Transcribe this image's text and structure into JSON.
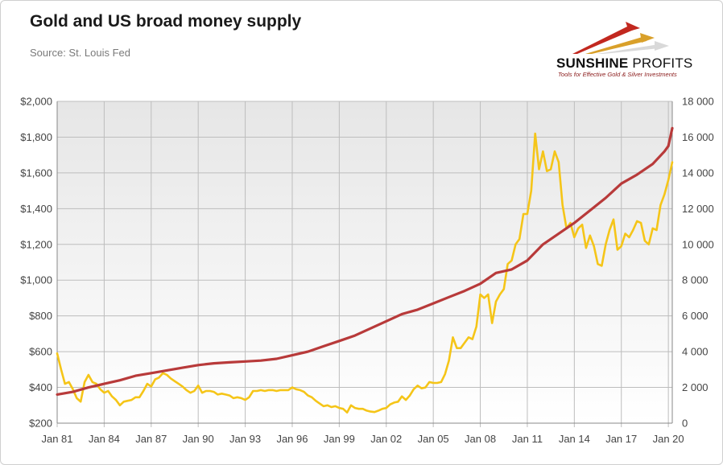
{
  "header": {
    "title": "Gold and US broad money supply",
    "subtitle": "Source: St. Louis Fed"
  },
  "logo": {
    "name_bold": "SUNSHINE",
    "name_light": " PROFITS",
    "tagline": "Tools for Effective Gold & Silver Investments"
  },
  "colors": {
    "gold": "#f5c518",
    "money": "#b83a3a",
    "grid": "#bdbdbd",
    "plot_bg_top": "#e6e6e6",
    "plot_bg_bottom": "#ffffff"
  },
  "chart_data": {
    "type": "line",
    "x_ticks": [
      "Jan 81",
      "Jan 84",
      "Jan 87",
      "Jan 90",
      "Jan 93",
      "Jan 96",
      "Jan 99",
      "Jan 02",
      "Jan 05",
      "Jan 08",
      "Jan 11",
      "Jan 14",
      "Jan 17",
      "Jan 20"
    ],
    "xlim": [
      1981.0,
      2020.25
    ],
    "y_left": {
      "ticks": [
        "$200",
        "$400",
        "$600",
        "$800",
        "$1,000",
        "$1,200",
        "$1,400",
        "$1,600",
        "$1,800",
        "$2,000"
      ],
      "lim": [
        200,
        2000
      ]
    },
    "y_right": {
      "ticks": [
        "0",
        "2 000",
        "4 000",
        "6 000",
        "8 000",
        "10 000",
        "12 000",
        "14 000",
        "16 000",
        "18 000"
      ],
      "lim": [
        0,
        18000
      ]
    },
    "grid": true,
    "series": [
      {
        "axis": "left",
        "color": "gold",
        "points": [
          [
            1981.0,
            590
          ],
          [
            1981.25,
            500
          ],
          [
            1981.5,
            420
          ],
          [
            1981.75,
            430
          ],
          [
            1982.0,
            390
          ],
          [
            1982.25,
            340
          ],
          [
            1982.5,
            320
          ],
          [
            1982.75,
            430
          ],
          [
            1983.0,
            470
          ],
          [
            1983.25,
            430
          ],
          [
            1983.5,
            420
          ],
          [
            1983.75,
            390
          ],
          [
            1984.0,
            370
          ],
          [
            1984.25,
            380
          ],
          [
            1984.5,
            350
          ],
          [
            1984.75,
            330
          ],
          [
            1985.0,
            300
          ],
          [
            1985.25,
            320
          ],
          [
            1985.5,
            325
          ],
          [
            1985.75,
            330
          ],
          [
            1986.0,
            345
          ],
          [
            1986.25,
            345
          ],
          [
            1986.5,
            380
          ],
          [
            1986.75,
            420
          ],
          [
            1987.0,
            405
          ],
          [
            1987.25,
            445
          ],
          [
            1987.5,
            455
          ],
          [
            1987.75,
            480
          ],
          [
            1988.0,
            470
          ],
          [
            1988.25,
            450
          ],
          [
            1988.5,
            435
          ],
          [
            1988.75,
            420
          ],
          [
            1989.0,
            405
          ],
          [
            1989.25,
            385
          ],
          [
            1989.5,
            370
          ],
          [
            1989.75,
            380
          ],
          [
            1990.0,
            410
          ],
          [
            1990.25,
            370
          ],
          [
            1990.5,
            380
          ],
          [
            1990.75,
            380
          ],
          [
            1991.0,
            375
          ],
          [
            1991.25,
            360
          ],
          [
            1991.5,
            365
          ],
          [
            1991.75,
            360
          ],
          [
            1992.0,
            355
          ],
          [
            1992.25,
            340
          ],
          [
            1992.5,
            345
          ],
          [
            1992.75,
            340
          ],
          [
            1993.0,
            330
          ],
          [
            1993.25,
            345
          ],
          [
            1993.5,
            380
          ],
          [
            1993.75,
            380
          ],
          [
            1994.0,
            385
          ],
          [
            1994.25,
            380
          ],
          [
            1994.5,
            385
          ],
          [
            1994.75,
            385
          ],
          [
            1995.0,
            380
          ],
          [
            1995.25,
            385
          ],
          [
            1995.5,
            385
          ],
          [
            1995.75,
            385
          ],
          [
            1996.0,
            400
          ],
          [
            1996.25,
            390
          ],
          [
            1996.5,
            385
          ],
          [
            1996.75,
            375
          ],
          [
            1997.0,
            355
          ],
          [
            1997.25,
            345
          ],
          [
            1997.5,
            325
          ],
          [
            1997.75,
            310
          ],
          [
            1998.0,
            295
          ],
          [
            1998.25,
            300
          ],
          [
            1998.5,
            290
          ],
          [
            1998.75,
            295
          ],
          [
            1999.0,
            285
          ],
          [
            1999.25,
            280
          ],
          [
            1999.5,
            260
          ],
          [
            1999.75,
            300
          ],
          [
            2000.0,
            285
          ],
          [
            2000.25,
            280
          ],
          [
            2000.5,
            280
          ],
          [
            2000.75,
            270
          ],
          [
            2001.0,
            265
          ],
          [
            2001.25,
            262
          ],
          [
            2001.5,
            270
          ],
          [
            2001.75,
            280
          ],
          [
            2002.0,
            285
          ],
          [
            2002.25,
            305
          ],
          [
            2002.5,
            315
          ],
          [
            2002.75,
            320
          ],
          [
            2003.0,
            350
          ],
          [
            2003.25,
            330
          ],
          [
            2003.5,
            355
          ],
          [
            2003.75,
            390
          ],
          [
            2004.0,
            410
          ],
          [
            2004.25,
            395
          ],
          [
            2004.5,
            400
          ],
          [
            2004.75,
            430
          ],
          [
            2005.0,
            425
          ],
          [
            2005.25,
            425
          ],
          [
            2005.5,
            430
          ],
          [
            2005.75,
            475
          ],
          [
            2006.0,
            550
          ],
          [
            2006.25,
            680
          ],
          [
            2006.5,
            620
          ],
          [
            2006.75,
            620
          ],
          [
            2007.0,
            650
          ],
          [
            2007.25,
            680
          ],
          [
            2007.5,
            670
          ],
          [
            2007.75,
            740
          ],
          [
            2008.0,
            920
          ],
          [
            2008.25,
            900
          ],
          [
            2008.5,
            920
          ],
          [
            2008.75,
            760
          ],
          [
            2009.0,
            880
          ],
          [
            2009.25,
            920
          ],
          [
            2009.5,
            950
          ],
          [
            2009.75,
            1090
          ],
          [
            2010.0,
            1110
          ],
          [
            2010.25,
            1200
          ],
          [
            2010.5,
            1230
          ],
          [
            2010.75,
            1370
          ],
          [
            2011.0,
            1370
          ],
          [
            2011.25,
            1500
          ],
          [
            2011.5,
            1820
          ],
          [
            2011.75,
            1620
          ],
          [
            2012.0,
            1720
          ],
          [
            2012.25,
            1610
          ],
          [
            2012.5,
            1620
          ],
          [
            2012.75,
            1720
          ],
          [
            2013.0,
            1660
          ],
          [
            2013.25,
            1420
          ],
          [
            2013.5,
            1290
          ],
          [
            2013.75,
            1320
          ],
          [
            2014.0,
            1240
          ],
          [
            2014.25,
            1290
          ],
          [
            2014.5,
            1310
          ],
          [
            2014.75,
            1180
          ],
          [
            2015.0,
            1250
          ],
          [
            2015.25,
            1190
          ],
          [
            2015.5,
            1090
          ],
          [
            2015.75,
            1080
          ],
          [
            2016.0,
            1200
          ],
          [
            2016.25,
            1280
          ],
          [
            2016.5,
            1340
          ],
          [
            2016.75,
            1170
          ],
          [
            2017.0,
            1190
          ],
          [
            2017.25,
            1260
          ],
          [
            2017.5,
            1240
          ],
          [
            2017.75,
            1280
          ],
          [
            2018.0,
            1330
          ],
          [
            2018.25,
            1320
          ],
          [
            2018.5,
            1220
          ],
          [
            2018.75,
            1200
          ],
          [
            2019.0,
            1290
          ],
          [
            2019.25,
            1280
          ],
          [
            2019.5,
            1420
          ],
          [
            2019.75,
            1480
          ],
          [
            2020.0,
            1560
          ],
          [
            2020.25,
            1660
          ]
        ]
      },
      {
        "axis": "right",
        "color": "money",
        "points": [
          [
            1981.0,
            1600
          ],
          [
            1982.0,
            1750
          ],
          [
            1983.0,
            2000
          ],
          [
            1984.0,
            2200
          ],
          [
            1985.0,
            2400
          ],
          [
            1986.0,
            2650
          ],
          [
            1987.0,
            2800
          ],
          [
            1988.0,
            2950
          ],
          [
            1989.0,
            3100
          ],
          [
            1990.0,
            3250
          ],
          [
            1991.0,
            3350
          ],
          [
            1992.0,
            3400
          ],
          [
            1993.0,
            3450
          ],
          [
            1994.0,
            3500
          ],
          [
            1995.0,
            3600
          ],
          [
            1996.0,
            3800
          ],
          [
            1997.0,
            4000
          ],
          [
            1998.0,
            4300
          ],
          [
            1999.0,
            4600
          ],
          [
            2000.0,
            4900
          ],
          [
            2001.0,
            5300
          ],
          [
            2002.0,
            5700
          ],
          [
            2003.0,
            6100
          ],
          [
            2004.0,
            6350
          ],
          [
            2005.0,
            6700
          ],
          [
            2006.0,
            7050
          ],
          [
            2007.0,
            7400
          ],
          [
            2008.0,
            7800
          ],
          [
            2009.0,
            8400
          ],
          [
            2010.0,
            8600
          ],
          [
            2011.0,
            9100
          ],
          [
            2012.0,
            10000
          ],
          [
            2013.0,
            10600
          ],
          [
            2014.0,
            11200
          ],
          [
            2015.0,
            11900
          ],
          [
            2016.0,
            12600
          ],
          [
            2017.0,
            13400
          ],
          [
            2018.0,
            13900
          ],
          [
            2019.0,
            14500
          ],
          [
            2019.75,
            15200
          ],
          [
            2020.0,
            15500
          ],
          [
            2020.25,
            16500
          ]
        ]
      }
    ]
  }
}
